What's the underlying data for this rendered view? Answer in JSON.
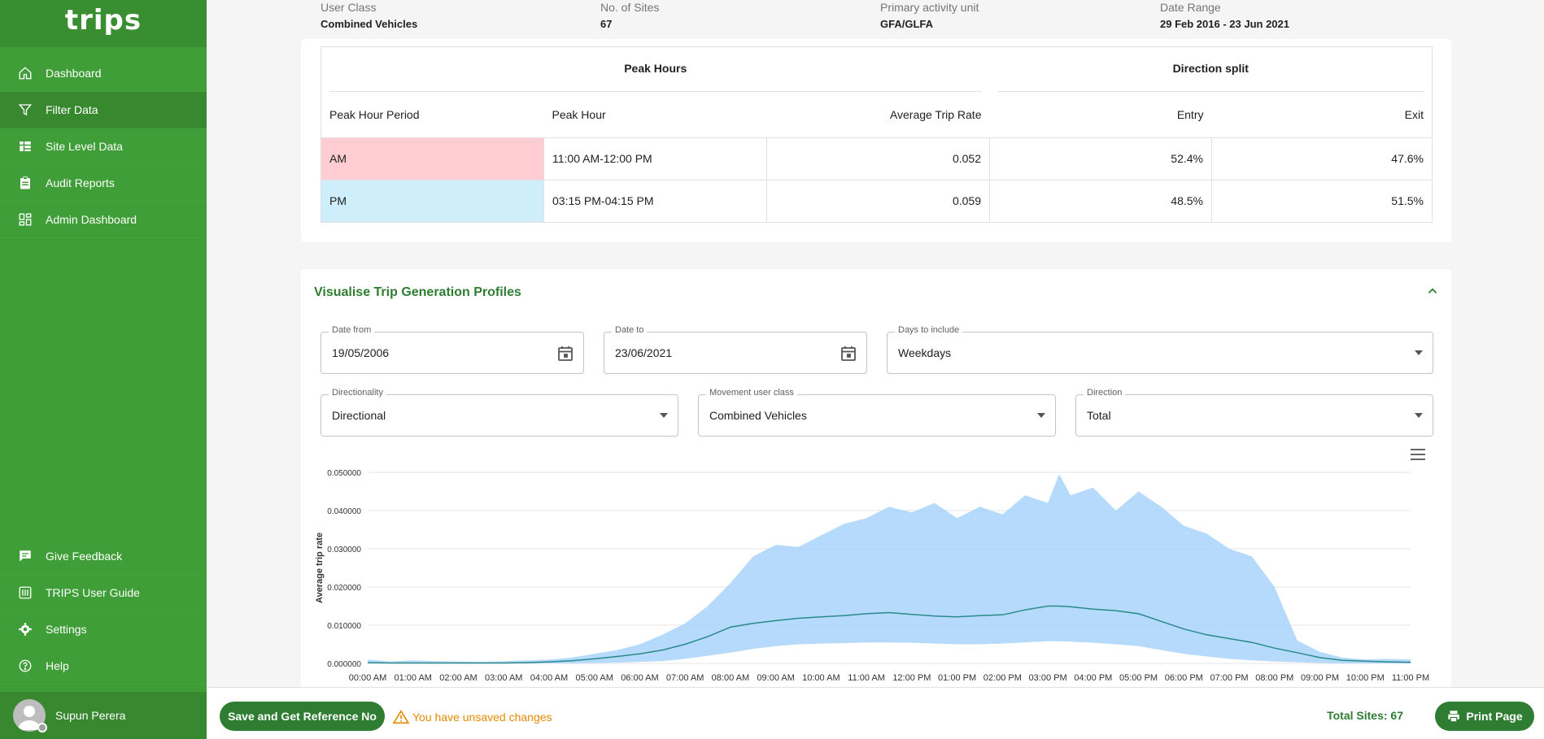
{
  "app": {
    "logo": "trips"
  },
  "sidebar": {
    "top_items": [
      {
        "label": "Dashboard",
        "icon": "home-icon"
      },
      {
        "label": "Filter Data",
        "icon": "filter-icon",
        "active": true
      },
      {
        "label": "Site Level Data",
        "icon": "site-data-icon"
      },
      {
        "label": "Audit Reports",
        "icon": "clipboard-icon"
      },
      {
        "label": "Admin Dashboard",
        "icon": "admin-grid-icon"
      }
    ],
    "bottom_items": [
      {
        "label": "Give Feedback",
        "icon": "feedback-icon"
      },
      {
        "label": "TRIPS User Guide",
        "icon": "guide-icon"
      },
      {
        "label": "Settings",
        "icon": "gear-icon"
      },
      {
        "label": "Help",
        "icon": "help-icon"
      }
    ],
    "user": {
      "name": "Supun Perera"
    }
  },
  "summary": {
    "user_class_label": "User Class",
    "user_class_value": "Combined Vehicles",
    "sites_label": "No. of Sites",
    "sites_value": "67",
    "activity_label": "Primary activity unit",
    "activity_value": "GFA/GLFA",
    "date_range_label": "Date Range",
    "date_range_value": "29 Feb 2016 - 23 Jun 2021"
  },
  "peak_table": {
    "group_peak": "Peak Hours",
    "group_direction": "Direction split",
    "headers": [
      "Peak Hour Period",
      "Peak Hour",
      "Average Trip Rate",
      "Entry",
      "Exit"
    ],
    "rows": [
      [
        "AM",
        "11:00 AM-12:00 PM",
        "0.052",
        "52.4%",
        "47.6%"
      ],
      [
        "PM",
        "03:15 PM-04:15 PM",
        "0.059",
        "48.5%",
        "51.5%"
      ]
    ]
  },
  "visualise": {
    "title": "Visualise Trip Generation Profiles",
    "date_from_label": "Date from",
    "date_from_value": "19/05/2006",
    "date_to_label": "Date to",
    "date_to_value": "23/06/2021",
    "days_label": "Days to include",
    "days_value": "Weekdays",
    "directionality_label": "Directionality",
    "directionality_value": "Directional",
    "movement_label": "Movement user class",
    "movement_value": "Combined Vehicles",
    "direction_label": "Direction",
    "direction_value": "Total"
  },
  "chart_data": {
    "type": "area",
    "ylabel": "Average trip rate",
    "ylim": [
      0,
      0.05
    ],
    "yticks": [
      "0.000000",
      "0.010000",
      "0.020000",
      "0.030000",
      "0.040000",
      "0.050000"
    ],
    "xticks": [
      "00:00 AM",
      "01:00 AM",
      "02:00 AM",
      "03:00 AM",
      "04:00 AM",
      "05:00 AM",
      "06:00 AM",
      "07:00 AM",
      "08:00 AM",
      "09:00 AM",
      "10:00 AM",
      "11:00 AM",
      "12:00 PM",
      "01:00 PM",
      "02:00 PM",
      "03:00 PM",
      "04:00 PM",
      "05:00 PM",
      "06:00 PM",
      "07:00 PM",
      "08:00 PM",
      "09:00 PM",
      "10:00 PM",
      "11:00 PM"
    ],
    "x_hours": [
      0,
      0.5,
      1,
      1.5,
      2,
      2.5,
      3,
      3.5,
      4,
      4.5,
      5,
      5.5,
      6,
      6.5,
      7,
      7.5,
      8,
      8.5,
      9,
      9.5,
      10,
      10.5,
      11,
      11.5,
      12,
      12.5,
      13,
      13.5,
      14,
      14.5,
      15,
      15.25,
      15.5,
      16,
      16.5,
      17,
      17.5,
      18,
      18.5,
      19,
      19.5,
      20,
      20.5,
      21,
      21.5,
      22,
      22.5,
      23
    ],
    "upper": [
      0.001,
      0.0005,
      0.0008,
      0.0006,
      0.0005,
      0.0004,
      0.0006,
      0.0008,
      0.001,
      0.0015,
      0.0025,
      0.0035,
      0.005,
      0.0075,
      0.0105,
      0.015,
      0.021,
      0.028,
      0.031,
      0.0305,
      0.0335,
      0.0365,
      0.038,
      0.041,
      0.0395,
      0.042,
      0.038,
      0.041,
      0.039,
      0.044,
      0.042,
      0.0495,
      0.044,
      0.046,
      0.04,
      0.045,
      0.041,
      0.036,
      0.034,
      0.03,
      0.028,
      0.02,
      0.006,
      0.003,
      0.0015,
      0.001,
      0.0012,
      0.001
    ],
    "mean": [
      0.0002,
      0.0001,
      0.0001,
      0.0001,
      0.0001,
      0.0001,
      0.0001,
      0.0002,
      0.0004,
      0.0007,
      0.0012,
      0.0018,
      0.0025,
      0.0035,
      0.005,
      0.007,
      0.0095,
      0.0105,
      0.0112,
      0.0118,
      0.0122,
      0.0125,
      0.013,
      0.0133,
      0.0128,
      0.0124,
      0.0122,
      0.0125,
      0.0127,
      0.014,
      0.015,
      0.015,
      0.0148,
      0.0142,
      0.0138,
      0.013,
      0.011,
      0.009,
      0.0075,
      0.0065,
      0.0055,
      0.004,
      0.0028,
      0.0015,
      0.0008,
      0.0006,
      0.0004,
      0.0003
    ],
    "lower": [
      0,
      0,
      0,
      0,
      0,
      0,
      0,
      0,
      0,
      0,
      0.0001,
      0.0002,
      0.0004,
      0.0006,
      0.0012,
      0.002,
      0.0028,
      0.0038,
      0.0045,
      0.005,
      0.0052,
      0.0053,
      0.0055,
      0.0055,
      0.0054,
      0.0052,
      0.005,
      0.005,
      0.0052,
      0.0055,
      0.0058,
      0.0058,
      0.0057,
      0.0054,
      0.005,
      0.0045,
      0.0035,
      0.0025,
      0.0018,
      0.0012,
      0.0008,
      0.0005,
      0.0003,
      0.0001,
      0,
      0,
      0,
      0
    ],
    "colors": {
      "band": "#a8d4fb",
      "line": "#2a8a8a",
      "grid": "#e6e6e6"
    }
  },
  "bottom": {
    "save_label": "Save and Get Reference No",
    "unsaved_label": "You have unsaved changes",
    "total_sites": "Total Sites: 67",
    "print_label": "Print Page"
  }
}
